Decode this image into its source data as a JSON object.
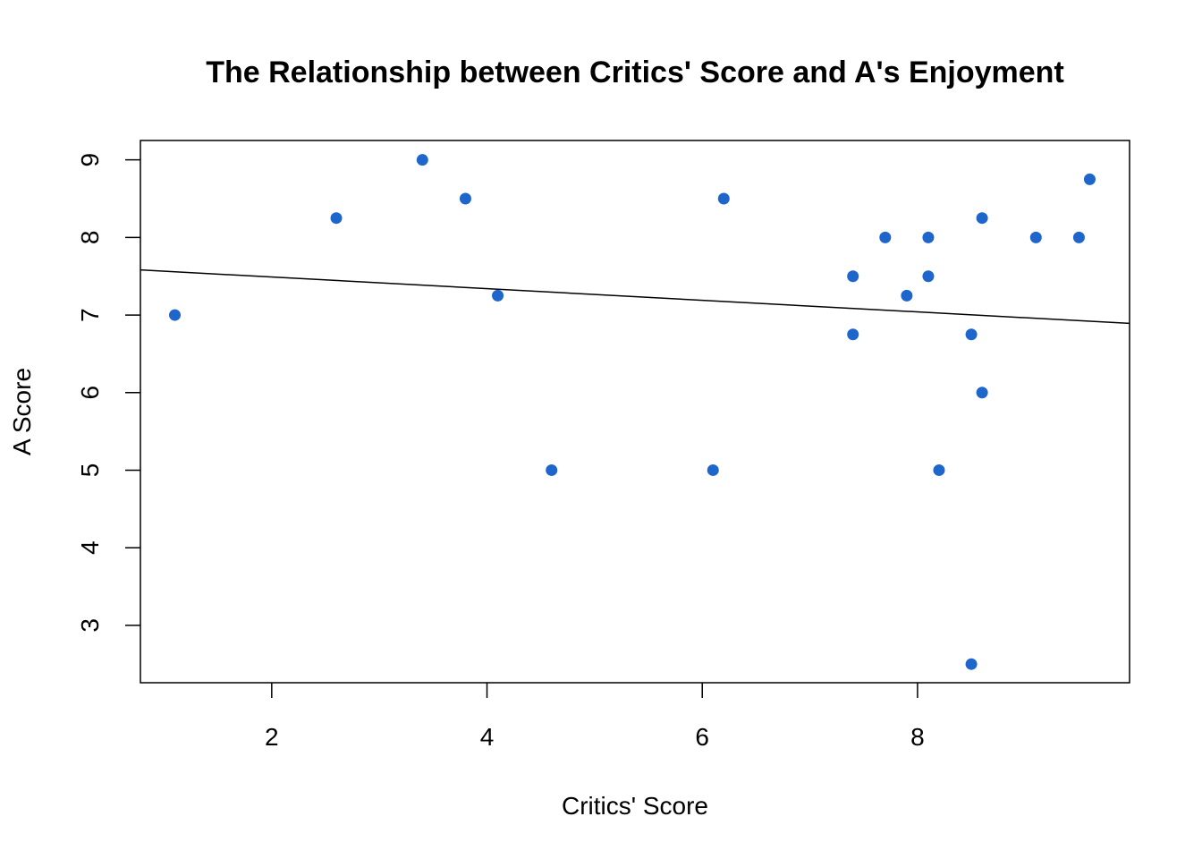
{
  "chart_data": {
    "type": "scatter",
    "title": "The Relationship between Critics' Score and A's Enjoyment",
    "xlabel": "Critics' Score",
    "ylabel": "A Score",
    "xlim": [
      0.78,
      9.97
    ],
    "ylim": [
      2.26,
      9.25
    ],
    "xticks": [
      2,
      4,
      6,
      8
    ],
    "yticks": [
      3,
      4,
      5,
      6,
      7,
      8,
      9
    ],
    "grid": false,
    "legend": "none",
    "point_color": "#1f66cc",
    "line_color": "#000000",
    "points": [
      {
        "x": 1.1,
        "y": 7.0
      },
      {
        "x": 2.6,
        "y": 8.25
      },
      {
        "x": 3.4,
        "y": 9.0
      },
      {
        "x": 3.8,
        "y": 8.5
      },
      {
        "x": 4.1,
        "y": 7.25
      },
      {
        "x": 4.6,
        "y": 5.0
      },
      {
        "x": 6.1,
        "y": 5.0
      },
      {
        "x": 6.2,
        "y": 8.5
      },
      {
        "x": 7.4,
        "y": 7.5
      },
      {
        "x": 7.4,
        "y": 6.75
      },
      {
        "x": 7.7,
        "y": 8.0
      },
      {
        "x": 7.9,
        "y": 7.25
      },
      {
        "x": 8.1,
        "y": 8.0
      },
      {
        "x": 8.1,
        "y": 7.5
      },
      {
        "x": 8.2,
        "y": 5.0
      },
      {
        "x": 8.5,
        "y": 6.75
      },
      {
        "x": 8.5,
        "y": 2.5
      },
      {
        "x": 8.6,
        "y": 8.25
      },
      {
        "x": 8.6,
        "y": 6.0
      },
      {
        "x": 9.1,
        "y": 8.0
      },
      {
        "x": 9.5,
        "y": 8.0
      },
      {
        "x": 9.6,
        "y": 8.75
      }
    ],
    "regression_line": {
      "intercept": 7.64,
      "slope": -0.075
    }
  }
}
